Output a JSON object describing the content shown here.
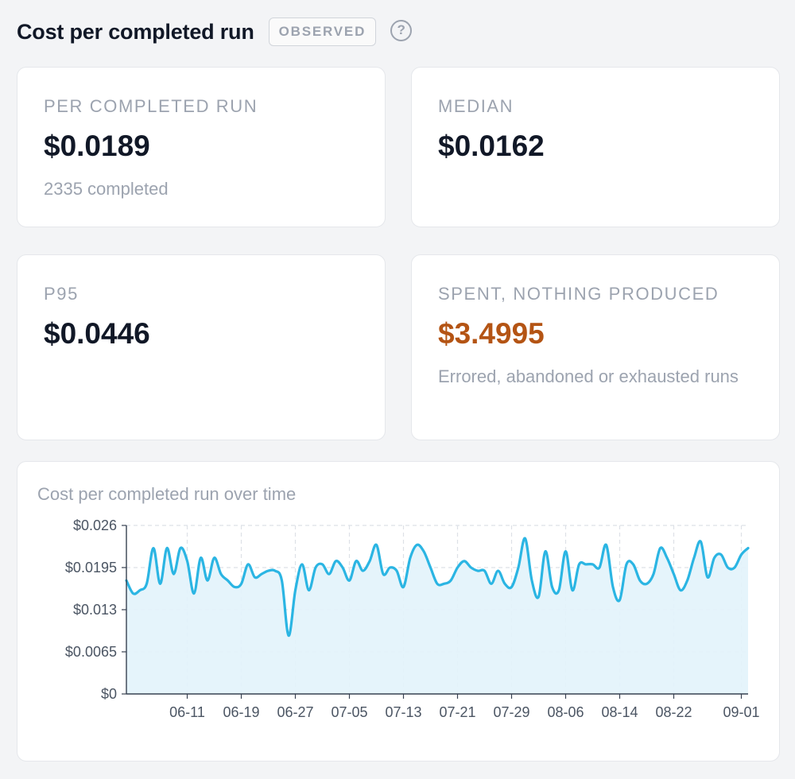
{
  "header": {
    "title": "Cost per completed run",
    "badge": "OBSERVED",
    "help_icon": "question-circle-icon"
  },
  "cards": {
    "per_run": {
      "label": "PER COMPLETED RUN",
      "value": "$0.0189",
      "sub": "2335 completed"
    },
    "median": {
      "label": "MEDIAN",
      "value": "$0.0162"
    },
    "p95": {
      "label": "P95",
      "value": "$0.0446"
    },
    "wasted": {
      "label": "SPENT, NOTHING PRODUCED",
      "value": "$3.4995",
      "sub": "Errored, abandoned or exhausted runs"
    }
  },
  "colors": {
    "accent_line": "#2bb5e3",
    "area_fill": "#e2f3fb",
    "warn": "#b45414"
  },
  "chart": {
    "title": "Cost per completed run over time",
    "chart_data": {
      "type": "area",
      "ylim": [
        0,
        0.026
      ],
      "y_ticks": [
        "$0",
        "$0.0065",
        "$0.013",
        "$0.0195",
        "$0.026"
      ],
      "x_ticks": [
        "06-11",
        "06-19",
        "06-27",
        "07-05",
        "07-13",
        "07-21",
        "07-29",
        "08-06",
        "08-14",
        "08-22",
        "09-01"
      ],
      "grid": true,
      "x_start": "2025-06-02",
      "values": [
        0.0175,
        0.0155,
        0.016,
        0.017,
        0.0225,
        0.017,
        0.0225,
        0.0185,
        0.0225,
        0.0205,
        0.0155,
        0.021,
        0.0175,
        0.021,
        0.0185,
        0.0175,
        0.0165,
        0.017,
        0.02,
        0.018,
        0.0185,
        0.019,
        0.019,
        0.0175,
        0.009,
        0.016,
        0.02,
        0.016,
        0.0195,
        0.02,
        0.0185,
        0.0205,
        0.0195,
        0.0175,
        0.0205,
        0.019,
        0.0205,
        0.023,
        0.0185,
        0.0195,
        0.019,
        0.0165,
        0.021,
        0.023,
        0.022,
        0.0195,
        0.017,
        0.017,
        0.0175,
        0.0195,
        0.0205,
        0.0195,
        0.019,
        0.019,
        0.017,
        0.019,
        0.017,
        0.0165,
        0.0195,
        0.024,
        0.0175,
        0.015,
        0.022,
        0.0165,
        0.016,
        0.022,
        0.016,
        0.02,
        0.02,
        0.02,
        0.0195,
        0.023,
        0.0165,
        0.0145,
        0.02,
        0.02,
        0.0175,
        0.017,
        0.0185,
        0.0225,
        0.021,
        0.0185,
        0.016,
        0.0175,
        0.021,
        0.0235,
        0.018,
        0.021,
        0.0215,
        0.0195,
        0.0195,
        0.0215,
        0.0225
      ]
    }
  }
}
